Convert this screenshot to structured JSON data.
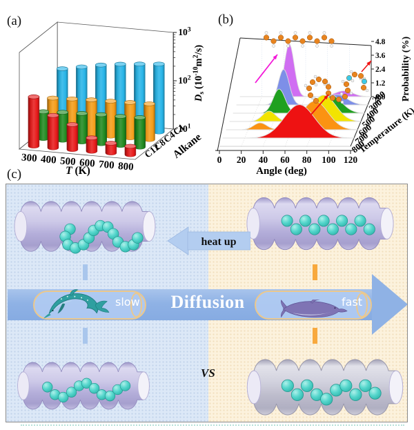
{
  "panels": {
    "a": {
      "label": "(a)"
    },
    "b": {
      "label": "(b)"
    },
    "c": {
      "label": "(c)",
      "heat_up": "heat up",
      "diffusion": "Diffusion",
      "slow": "slow",
      "fast": "fast",
      "vs": "VS",
      "colors": {
        "arrow_band": "#92b5e8",
        "capsule_outline": "#ecc88c",
        "equals_left_blue": "#a9c6ec",
        "equals_right_orange": "#f8a93e",
        "cold_side_background": "#dce8f7",
        "hot_side_background": "#fcf2dd",
        "molecule_cyan": "#4fd2ca",
        "nanotube_lavender": "#bcb6de"
      }
    }
  },
  "chart_data": [
    {
      "id": "alkane-diffusivity-3d-bars",
      "type": "bar",
      "projection": "3d-cylinders",
      "xlabel": "T (K)",
      "categories": [
        "300",
        "400",
        "500",
        "600",
        "700",
        "800"
      ],
      "depth_axis_label": "Alkane",
      "depth_categories": [
        "C12",
        "C8",
        "C4",
        "C1"
      ],
      "ylabel": "Ds (10^-10 m^2/s)",
      "ylabel_parts": [
        {
          "t": "D",
          "italic": true
        },
        {
          "t": "s",
          "sub": true
        },
        {
          "t": " (10"
        },
        {
          "t": "-10",
          "sup": true
        },
        {
          "t": "m"
        },
        {
          "t": "2",
          "sup": true
        },
        {
          "t": "/s)"
        }
      ],
      "y_scale": "log",
      "ylim": [
        10,
        1000
      ],
      "y_ticks": [
        "10^1",
        "10^2",
        "10^3"
      ],
      "series": [
        {
          "name": "C1",
          "color": "#28b5e8",
          "values": [
            135,
            160,
            190,
            215,
            235,
            255
          ]
        },
        {
          "name": "C4",
          "color": "#f59d18",
          "values": [
            48,
            50,
            52,
            53,
            54,
            55
          ]
        },
        {
          "name": "C8",
          "color": "#208a20",
          "values": [
            36,
            38,
            39,
            40,
            40,
            41
          ]
        },
        {
          "name": "C12",
          "color": "#e81b1b",
          "values": [
            105,
            47,
            33,
            19,
            16,
            15
          ]
        }
      ]
    },
    {
      "id": "dihedral-angle-distribution-ridges",
      "type": "area",
      "projection": "3d-waterfall",
      "xlabel": "Angle (deg)",
      "xlim": [
        0,
        120
      ],
      "x_ticks": [
        0,
        20,
        40,
        60,
        80,
        100,
        120
      ],
      "depth_axis_label": "Temperature (K)",
      "depth_ticks": [
        "200",
        "300",
        "400",
        "500",
        "600",
        "700",
        "800"
      ],
      "ylabel": "Probability (%)",
      "ylim": [
        0,
        4.8
      ],
      "y_ticks": [
        "0.0",
        "1.2",
        "2.4",
        "3.6",
        "4.8"
      ],
      "series": [
        {
          "name": "200 K",
          "color": "#d06ef2",
          "peaks": [
            {
              "center": 45,
              "amp": 4.6,
              "width": 4.5
            },
            {
              "center": 95,
              "amp": 0.5,
              "width": 8
            }
          ]
        },
        {
          "name": "300 K",
          "color": "#7d8fe8",
          "peaks": [
            {
              "center": 43,
              "amp": 3.1,
              "width": 5
            },
            {
              "center": 92,
              "amp": 0.9,
              "width": 9
            }
          ]
        },
        {
          "name": "400 K",
          "color": "#1fa01f",
          "peaks": [
            {
              "center": 42,
              "amp": 2.1,
              "width": 5.5
            },
            {
              "center": 89,
              "amp": 1.6,
              "width": 10
            }
          ]
        },
        {
          "name": "500 K",
          "color": "#f2e400",
          "peaks": [
            {
              "center": 36,
              "amp": 0.9,
              "width": 6
            },
            {
              "center": 86,
              "amp": 2.3,
              "width": 11
            }
          ]
        },
        {
          "name": "600 K",
          "color": "#fb9312",
          "peaks": [
            {
              "center": 31,
              "amp": 0.6,
              "width": 6
            },
            {
              "center": 81,
              "amp": 2.5,
              "width": 12
            }
          ]
        },
        {
          "name": "700 K",
          "color": "#ee1212",
          "peaks": [
            {
              "center": 70,
              "amp": 2.9,
              "width": 14
            }
          ]
        }
      ],
      "annotations": [
        "straight alkane chain at low temperature",
        "coiled alkane chain at high temperature"
      ],
      "annotation_colors": {
        "low_T_arrow": "#f318d8",
        "high_T_arrow": "#ee1212"
      },
      "molecule_colors": {
        "carbon": "#e8841f",
        "hydrogen": "#f5f5f5",
        "highlight": "#3cc9e8"
      }
    }
  ]
}
